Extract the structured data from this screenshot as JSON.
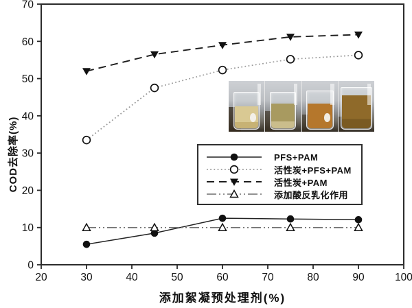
{
  "chart_data": {
    "type": "line",
    "title": "",
    "xlabel": "添加絮凝预处理剂(%)",
    "ylabel": "COD去除率(%)",
    "x": [
      30,
      45,
      60,
      75,
      90
    ],
    "xlim": [
      20,
      100
    ],
    "ylim": [
      0,
      70
    ],
    "xticks": [
      20,
      30,
      40,
      50,
      60,
      70,
      80,
      90,
      100
    ],
    "yticks": [
      0,
      10,
      20,
      30,
      40,
      50,
      60,
      70
    ],
    "grid": false,
    "legend_position": "inside-middle-right",
    "frame_color": "#2b2b2b",
    "series": [
      {
        "name": "PFS+PAM",
        "values": [
          5.5,
          8.5,
          12.5,
          12.3,
          12.1
        ],
        "line": "solid",
        "marker": "filled-circle",
        "color": "#222222",
        "width": 1.5
      },
      {
        "name": "活性炭+PFS+PAM",
        "values": [
          33.5,
          47.5,
          52.3,
          55.2,
          56.3
        ],
        "line": "dotted",
        "marker": "open-circle",
        "color": "#9a9a9a",
        "width": 1.7
      },
      {
        "name": "活性炭+PAM",
        "values": [
          52,
          56.5,
          59,
          61.2,
          61.8
        ],
        "line": "dashed",
        "marker": "filled-triangle-down",
        "color": "#1d1d1d",
        "width": 1.9
      },
      {
        "name": "添加酸反乳化作用",
        "values": [
          10,
          10,
          10,
          10,
          10
        ],
        "line": "dash-dot-dot",
        "marker": "open-triangle-up",
        "color": "#6e6e6e",
        "width": 1.5
      }
    ]
  },
  "inset": {
    "beakers": [
      {
        "liquid_color": "#d9c993",
        "band_color": "#c7b274",
        "level": 0.6,
        "label_spot": true
      },
      {
        "liquid_color": "#a89a60",
        "band_color": "#cabd8c",
        "level": 0.68,
        "label_spot": false
      },
      {
        "liquid_color": "#b5772c",
        "band_color": "",
        "level": 0.66,
        "label_spot": true
      },
      {
        "liquid_color": "#8f6a2a",
        "band_color": "#7a5a22",
        "level": 0.8,
        "label_spot": false
      }
    ]
  },
  "colors": {
    "marker_stroke": "#111111",
    "text": "#111111"
  }
}
